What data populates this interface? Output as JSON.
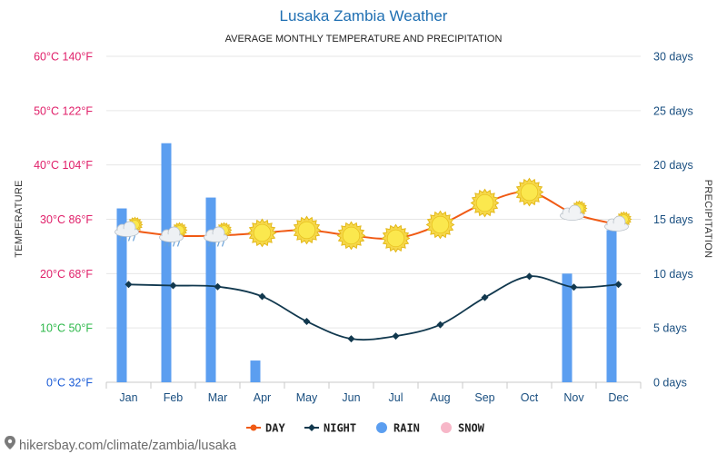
{
  "header": {
    "title": "Lusaka Zambia Weather",
    "subtitle": "AVERAGE MONTHLY TEMPERATURE AND PRECIPITATION"
  },
  "footer": {
    "url": "hikersbay.com/climate/zambia/lusaka",
    "icon": "pin-icon"
  },
  "chart_data": {
    "type": "line",
    "categories": [
      "Jan",
      "Feb",
      "Mar",
      "Apr",
      "May",
      "Jun",
      "Jul",
      "Aug",
      "Sep",
      "Oct",
      "Nov",
      "Dec"
    ],
    "left_axis": {
      "label": "TEMPERATURE",
      "min": 0,
      "max": 60,
      "step": 10,
      "ticks": [
        {
          "value": 60,
          "label": "60°C 140°F",
          "color": "#e0206a"
        },
        {
          "value": 50,
          "label": "50°C 122°F",
          "color": "#e0206a"
        },
        {
          "value": 40,
          "label": "40°C 104°F",
          "color": "#e0206a"
        },
        {
          "value": 30,
          "label": "30°C 86°F",
          "color": "#e0206a"
        },
        {
          "value": 20,
          "label": "20°C 68°F",
          "color": "#e0206a"
        },
        {
          "value": 10,
          "label": "10°C 50°F",
          "color": "#2db84a"
        },
        {
          "value": 0,
          "label": "0°C 32°F",
          "color": "#1a5bd6"
        }
      ]
    },
    "right_axis": {
      "label": "PRECIPITATION",
      "min": 0,
      "max": 30,
      "step": 5,
      "ticks": [
        {
          "value": 30,
          "label": "30 days"
        },
        {
          "value": 25,
          "label": "25 days"
        },
        {
          "value": 20,
          "label": "20 days"
        },
        {
          "value": 15,
          "label": "15 days"
        },
        {
          "value": 10,
          "label": "10 days"
        },
        {
          "value": 5,
          "label": "5 days"
        },
        {
          "value": 0,
          "label": "0 days"
        }
      ]
    },
    "grid": true,
    "series": [
      {
        "name": "DAY",
        "kind": "line",
        "axis": "left",
        "color": "#f05a14",
        "values": [
          28,
          27,
          27,
          27.5,
          28,
          27,
          26.5,
          29,
          33,
          35,
          31,
          29
        ]
      },
      {
        "name": "NIGHT",
        "kind": "line",
        "axis": "left",
        "color": "#11384e",
        "values": [
          18,
          17.8,
          17.6,
          15.8,
          11.2,
          8,
          8.5,
          10.6,
          15.6,
          19.5,
          17.5,
          18
        ]
      },
      {
        "name": "RAIN",
        "kind": "bar",
        "axis": "right",
        "color": "#5b9ef0",
        "values": [
          16,
          22,
          17,
          2,
          0,
          0,
          0,
          0,
          0,
          0,
          10,
          14
        ]
      },
      {
        "name": "SNOW",
        "kind": "bar",
        "axis": "right",
        "color": "#f7b7c8",
        "values": [
          0,
          0,
          0,
          0,
          0,
          0,
          0,
          0,
          0,
          0,
          0,
          0
        ]
      }
    ],
    "weather_icons": [
      "cloud-rain-icon",
      "cloud-rain-icon",
      "cloud-rain-icon",
      "sun-icon",
      "sun-icon",
      "sun-icon",
      "sun-icon",
      "sun-icon",
      "sun-icon",
      "sun-icon",
      "partly-cloudy-icon",
      "partly-cloudy-icon"
    ],
    "legend": {
      "placement": "bottom-center",
      "items": [
        {
          "label": "DAY",
          "color": "#f05a14",
          "marker": "line-dot"
        },
        {
          "label": "NIGHT",
          "color": "#11384e",
          "marker": "line-diamond"
        },
        {
          "label": "RAIN",
          "color": "#5b9ef0",
          "marker": "circle"
        },
        {
          "label": "SNOW",
          "color": "#f7b7c8",
          "marker": "circle"
        }
      ]
    }
  }
}
